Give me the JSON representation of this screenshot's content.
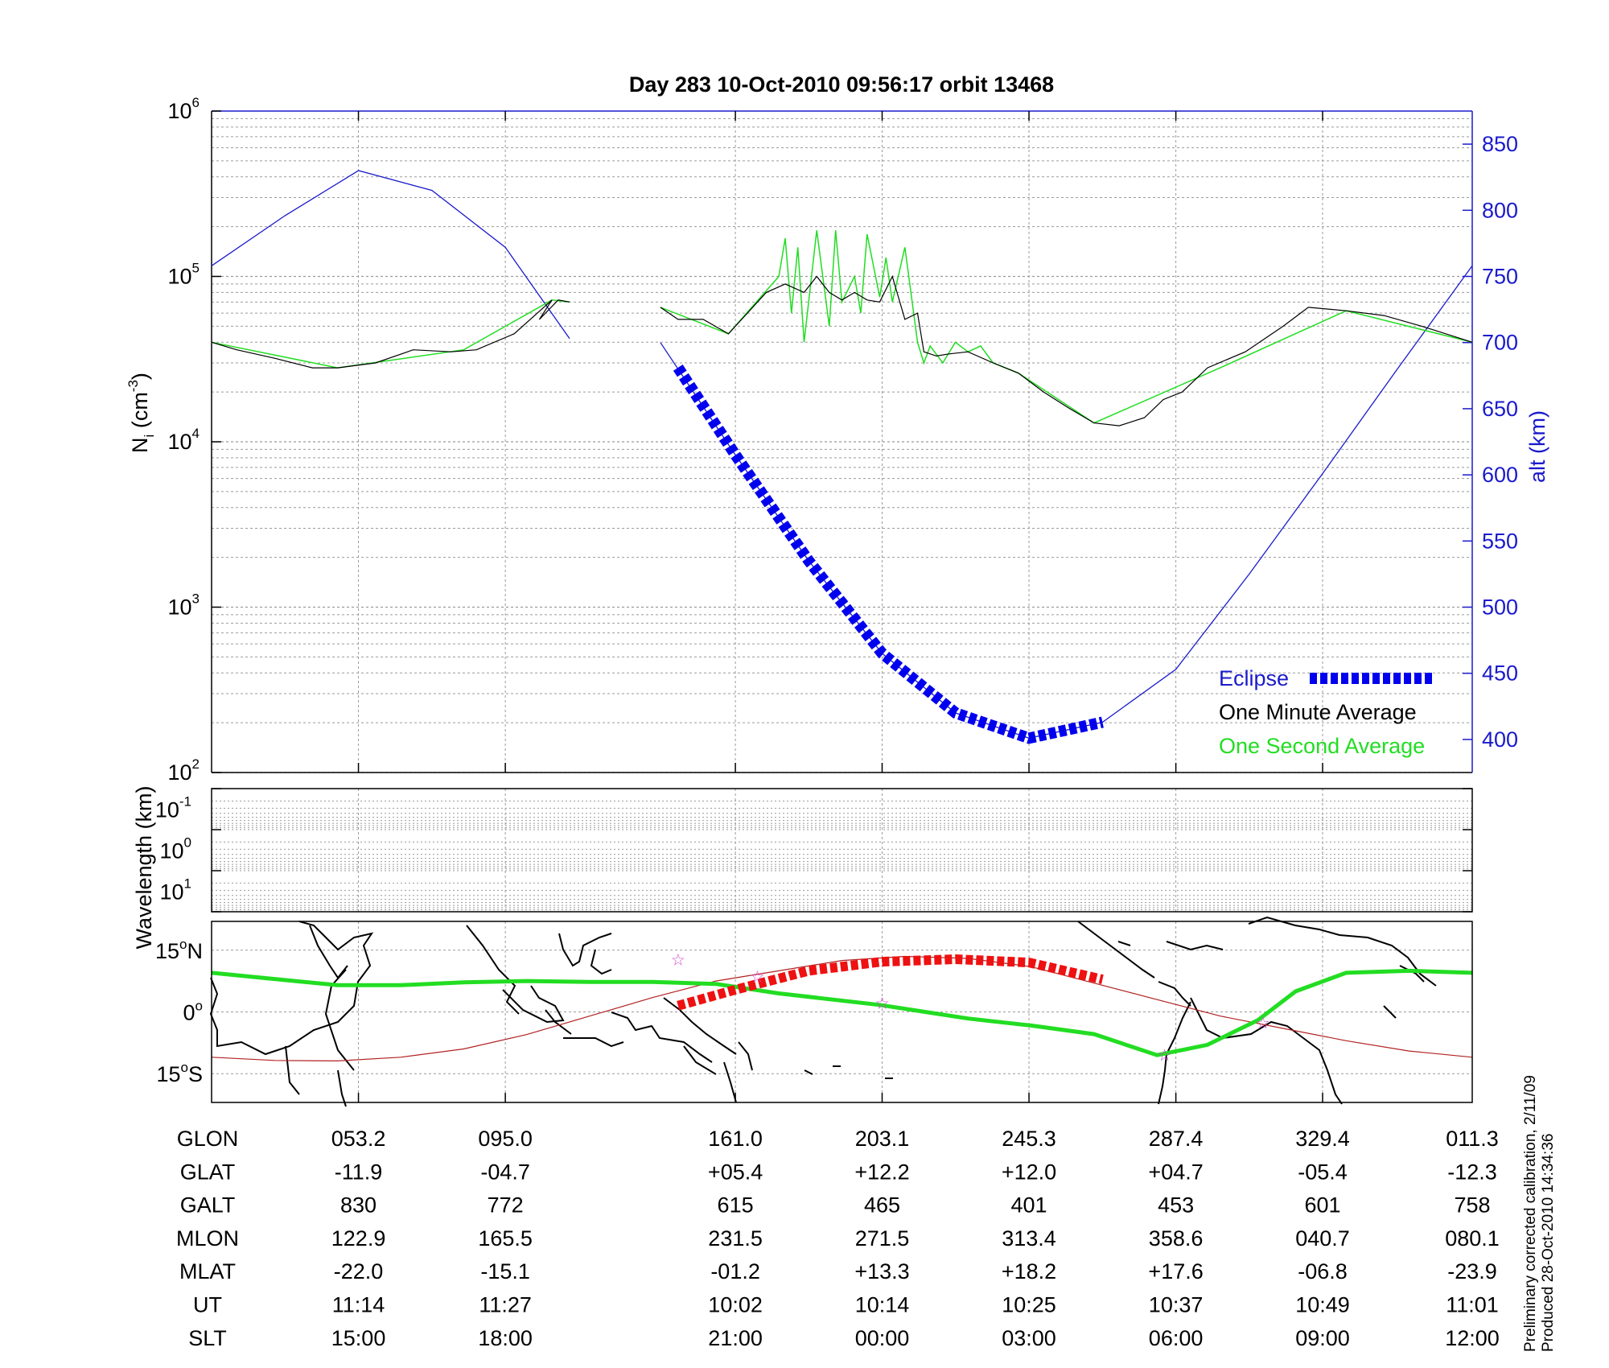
{
  "title": "Day 283  10-Oct-2010 09:56:17   orbit 13468",
  "colors": {
    "axis": "#000000",
    "grid": "#9a9a9a",
    "altitude": "#1a1acc",
    "eclipse": "#0000ee",
    "one_minute": "#000000",
    "one_second": "#22dd22",
    "track_green": "#22dd22",
    "eclipse_track": "#ee1111",
    "magnetic_equator": "#b22222",
    "star_marker": "#cc44cc",
    "coastline": "#000000"
  },
  "left_axis": {
    "label_main": "N",
    "label_sub": "i",
    "label_unit": " (cm",
    "label_exp": "-3",
    "label_close": ")"
  },
  "left_ticks": [
    {
      "base": "10",
      "exp": "2"
    },
    {
      "base": "10",
      "exp": "3"
    },
    {
      "base": "10",
      "exp": "4"
    },
    {
      "base": "10",
      "exp": "5"
    },
    {
      "base": "10",
      "exp": "6"
    }
  ],
  "right_axis": {
    "label": "alt (km)"
  },
  "right_ticks": [
    "400",
    "450",
    "500",
    "550",
    "600",
    "650",
    "700",
    "750",
    "800",
    "850"
  ],
  "wave_axis": {
    "label": "Wavelength (km)"
  },
  "wave_ticks": [
    {
      "base": "10",
      "exp": "-1"
    },
    {
      "base": "10",
      "exp": "0"
    },
    {
      "base": "10",
      "exp": "1"
    }
  ],
  "map_ticks": [
    {
      "value": "15",
      "deg": "o",
      "hemi": "N"
    },
    {
      "value": "0",
      "deg": "o",
      "hemi": ""
    },
    {
      "value": "15",
      "deg": "o",
      "hemi": "S"
    }
  ],
  "legend": {
    "eclipse": "Eclipse",
    "one_minute": "One Minute Average",
    "one_second": "One Second Average"
  },
  "table": {
    "row_labels": [
      "GLON",
      "GLAT",
      "GALT",
      "MLON",
      "MLAT",
      "UT",
      "SLT"
    ],
    "columns": [
      [
        "053.2",
        "-11.9",
        "830",
        "122.9",
        "-22.0",
        "11:14",
        "15:00"
      ],
      [
        "095.0",
        "-04.7",
        "772",
        "165.5",
        "-15.1",
        "11:27",
        "18:00"
      ],
      [
        "161.0",
        "+05.4",
        "615",
        "231.5",
        "-01.2",
        "10:02",
        "21:00"
      ],
      [
        "203.1",
        "+12.2",
        "465",
        "271.5",
        "+13.3",
        "10:14",
        "00:00"
      ],
      [
        "245.3",
        "+12.0",
        "401",
        "313.4",
        "+18.2",
        "10:25",
        "03:00"
      ],
      [
        "287.4",
        "+04.7",
        "453",
        "358.6",
        "+17.6",
        "10:37",
        "06:00"
      ],
      [
        "329.4",
        "-05.4",
        "601",
        "040.7",
        "-06.8",
        "10:49",
        "09:00"
      ],
      [
        "011.3",
        "-12.3",
        "758",
        "080.1",
        "-23.9",
        "11:01",
        "12:00"
      ]
    ]
  },
  "side_note": {
    "line1": "Preliminary corrected calibration, 2/11/09",
    "line2": "Produced 28-Oct-2010 14:34:36"
  },
  "chart_data": [
    {
      "type": "line",
      "panel": "ion density and altitude",
      "title": "Day 283  10-Oct-2010 09:56:17   orbit 13468",
      "ylabel": "Ni (cm-3)",
      "yscale": "log",
      "ylim": [
        100,
        1000000
      ],
      "y2label": "alt (km)",
      "y2lim": [
        375,
        875
      ],
      "xlim": [
        0,
        1
      ],
      "xticks": [
        0.1165,
        0.233,
        0.4155,
        0.5319,
        0.6484,
        0.7649,
        0.8813
      ],
      "x_note": "x is fractional position along the orbit; ticks correspond to the table columns",
      "series": [
        {
          "name": "One Minute Average",
          "gaps": [
            [
              0.284,
              0.356
            ]
          ],
          "x": [
            0.0,
            0.02,
            0.05,
            0.08,
            0.1,
            0.13,
            0.16,
            0.19,
            0.21,
            0.24,
            0.27,
            0.26,
            0.275,
            0.284,
            0.356,
            0.37,
            0.39,
            0.41,
            0.425,
            0.44,
            0.455,
            0.47,
            0.48,
            0.49,
            0.5,
            0.51,
            0.52,
            0.53,
            0.54,
            0.55,
            0.56,
            0.565,
            0.575,
            0.585,
            0.6,
            0.62,
            0.64,
            0.66,
            0.68,
            0.7,
            0.72,
            0.74,
            0.755,
            0.77,
            0.79,
            0.82,
            0.85,
            0.87,
            0.9,
            0.93,
            0.96,
            1.0
          ],
          "y": [
            40000,
            36000,
            32000,
            28000,
            28000,
            30000,
            36000,
            35000,
            36000,
            45000,
            72000,
            55000,
            72000,
            70000,
            65000,
            55000,
            55000,
            45000,
            60000,
            80000,
            90000,
            80000,
            100000,
            80000,
            72000,
            80000,
            72000,
            70000,
            100000,
            55000,
            60000,
            35000,
            33000,
            34000,
            35000,
            30000,
            26000,
            20000,
            16000,
            13000,
            12500,
            14000,
            18000,
            20000,
            28000,
            35000,
            50000,
            65000,
            62000,
            58000,
            50000,
            40000
          ]
        },
        {
          "name": "One Second Average",
          "gaps": [
            [
              0.284,
              0.356
            ]
          ],
          "x": [
            0.0,
            0.1,
            0.2,
            0.27,
            0.284,
            0.356,
            0.41,
            0.45,
            0.455,
            0.46,
            0.465,
            0.47,
            0.48,
            0.49,
            0.495,
            0.5,
            0.51,
            0.515,
            0.52,
            0.53,
            0.535,
            0.54,
            0.55,
            0.56,
            0.565,
            0.57,
            0.58,
            0.59,
            0.6,
            0.61,
            0.62,
            0.64,
            0.7,
            0.8,
            0.9,
            1.0
          ],
          "y": [
            40000,
            28000,
            36000,
            72000,
            70000,
            65000,
            45000,
            100000,
            170000,
            60000,
            150000,
            40000,
            190000,
            50000,
            190000,
            70000,
            100000,
            60000,
            180000,
            75000,
            130000,
            70000,
            150000,
            40000,
            30000,
            38000,
            30000,
            40000,
            35000,
            38000,
            30000,
            26000,
            13000,
            28000,
            62000,
            40000
          ]
        },
        {
          "name": "Altitude",
          "axis": "alt (km)",
          "gaps": [
            [
              0.284,
              0.356
            ]
          ],
          "x": [
            0.0,
            0.0583,
            0.1165,
            0.1748,
            0.233,
            0.284,
            0.356,
            0.4155,
            0.4737,
            0.5319,
            0.5902,
            0.6484,
            0.7067,
            0.7649,
            0.8231,
            0.8813,
            0.9406,
            1.0
          ],
          "y": [
            758,
            796,
            830,
            815,
            772,
            703,
            700,
            615,
            535,
            465,
            420,
            401,
            413,
            453,
            525,
            601,
            680,
            758
          ]
        },
        {
          "name": "Eclipse",
          "axis": "alt (km)",
          "x": [
            0.37,
            0.4155,
            0.4737,
            0.5319,
            0.5902,
            0.6484,
            0.7067
          ],
          "y": [
            681,
            615,
            535,
            465,
            420,
            401,
            413
          ]
        }
      ],
      "legend": [
        "Eclipse",
        "One Minute Average",
        "One Second Average"
      ],
      "legend_position": "bottom-right",
      "grid": true
    },
    {
      "type": "line",
      "panel": "wavelength",
      "ylabel": "Wavelength (km)",
      "yscale": "log",
      "yticks": [
        "10-1",
        "100",
        "101"
      ],
      "series": [],
      "grid": true
    },
    {
      "type": "line",
      "panel": "orbit track map",
      "ylim": [
        -22,
        22
      ],
      "xlim": [
        0,
        1
      ],
      "series": [
        {
          "name": "Satellite track",
          "x": [
            0.0,
            0.05,
            0.1,
            0.15,
            0.2,
            0.25,
            0.3,
            0.35,
            0.4,
            0.45,
            0.53,
            0.6,
            0.65,
            0.7,
            0.75,
            0.79,
            0.83,
            0.86,
            0.9,
            0.95,
            1.0
          ],
          "y": [
            9.5,
            8,
            6.5,
            6.5,
            7.2,
            7.5,
            7.3,
            7.3,
            6.8,
            4.5,
            1.7,
            -1.6,
            -3.3,
            -5.4,
            -10.5,
            -8,
            -2,
            5,
            9.5,
            10,
            9.5
          ]
        },
        {
          "name": "Eclipse track",
          "x": [
            0.37,
            0.4155,
            0.4737,
            0.5319,
            0.5902,
            0.6484,
            0.7067
          ],
          "y": [
            1.5,
            5.4,
            10,
            12.2,
            12.8,
            12.0,
            7.9
          ]
        },
        {
          "name": "Magnetic equator",
          "x": [
            0.0,
            0.05,
            0.1,
            0.15,
            0.2,
            0.25,
            0.3,
            0.35,
            0.4,
            0.45,
            0.5,
            0.55,
            0.6,
            0.65,
            0.7,
            0.75,
            0.8,
            0.85,
            0.9,
            0.95,
            1.0
          ],
          "y": [
            -11,
            -11.8,
            -11.9,
            -11,
            -9,
            -5.5,
            -1,
            3.5,
            7.5,
            10,
            12.5,
            13.5,
            13,
            11,
            7,
            3,
            -1,
            -4,
            -7,
            -9.5,
            -11
          ]
        }
      ],
      "markers": [
        {
          "x": 0.37,
          "y": 12.7
        },
        {
          "x": 0.433,
          "y": 8.6
        },
        {
          "x": 0.532,
          "y": 2.2
        },
        {
          "x": 0.756,
          "y": -10.5
        },
        {
          "x": 0.834,
          "y": -2.6
        }
      ],
      "grid": true
    }
  ]
}
